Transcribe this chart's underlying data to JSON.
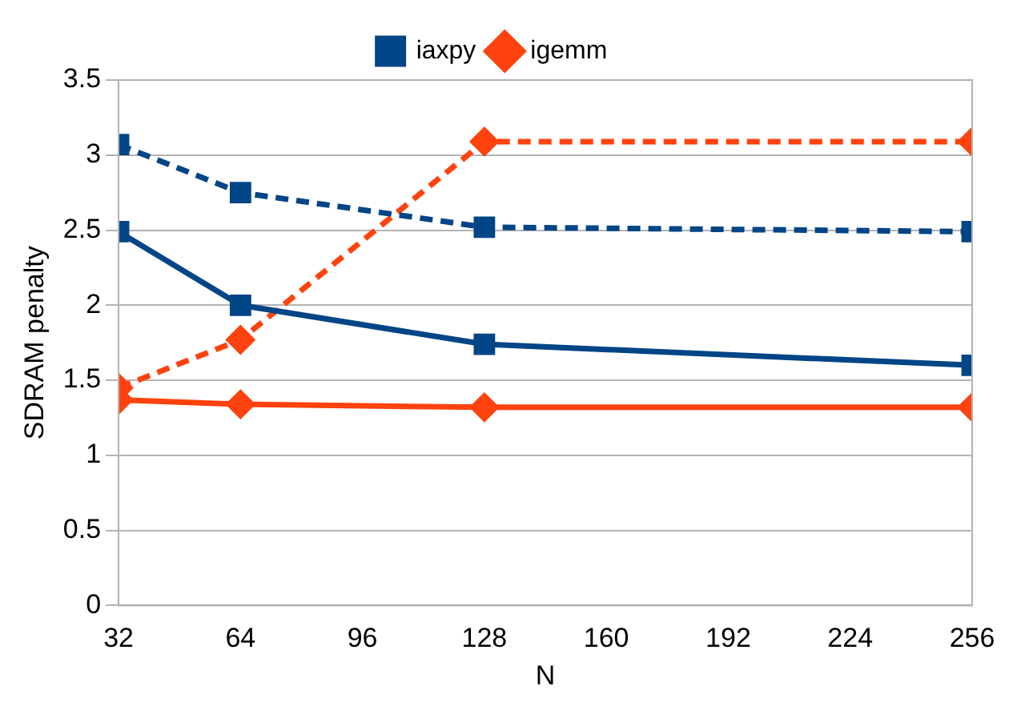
{
  "chart_data": {
    "type": "line",
    "xlabel": "N",
    "ylabel": "SDRAM penalty",
    "x": [
      32,
      64,
      128,
      256
    ],
    "series": [
      {
        "name": "iaxpy",
        "color": "#004586",
        "values": [
          2.49,
          2.0,
          1.74,
          1.6
        ],
        "marker": "square",
        "line_style": "solid"
      },
      {
        "name": "igemm",
        "color": "#ff420e",
        "values": [
          1.37,
          1.34,
          1.32,
          1.32
        ],
        "marker": "diamond",
        "line_style": "solid"
      },
      {
        "color": "#004586",
        "values": [
          3.07,
          2.75,
          2.52,
          2.49
        ],
        "marker": "square",
        "line_style": "dashed"
      },
      {
        "color": "#ff420e",
        "values": [
          1.45,
          1.77,
          3.09,
          3.09
        ],
        "marker": "diamond",
        "line_style": "dashed"
      }
    ],
    "xlim": [
      32,
      256
    ],
    "xticks": [
      32,
      64,
      96,
      128,
      160,
      192,
      224,
      256
    ],
    "ylim": [
      0,
      3.5
    ],
    "yticks": [
      0,
      0.5,
      1,
      1.5,
      2,
      2.5,
      3,
      3.5
    ],
    "grid": "y",
    "legend": "top"
  }
}
